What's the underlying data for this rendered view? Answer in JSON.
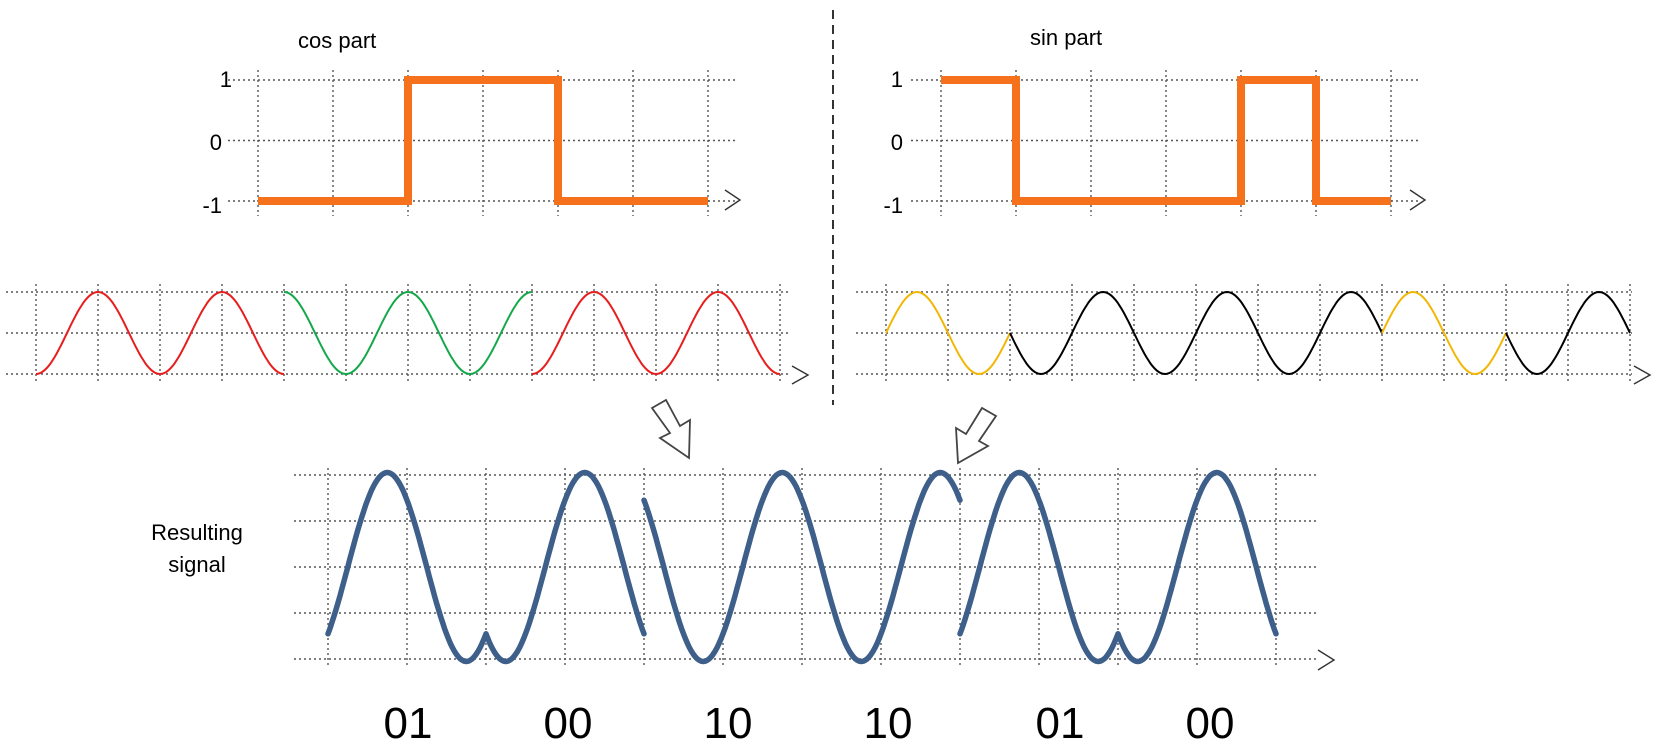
{
  "cos_chart": {
    "title": "cos part",
    "y_ticks": [
      "1",
      "0",
      "-1"
    ],
    "levels": [
      -1,
      -1,
      1,
      1,
      -1,
      -1
    ],
    "color": "#F5711C"
  },
  "sin_chart": {
    "title": "sin part",
    "y_ticks": [
      "1",
      "0",
      "-1"
    ],
    "levels": [
      1,
      -1,
      -1,
      -1,
      1,
      -1
    ],
    "color": "#F5711C"
  },
  "cos_wave": {
    "segment_colors": [
      "#E61E1E",
      "#E61E1E",
      "#14A84A",
      "#14A84A",
      "#E61E1E",
      "#E61E1E"
    ]
  },
  "sin_wave": {
    "segment_colors": [
      "#F2B705",
      "#000000",
      "#000000",
      "#000000",
      "#F2B705",
      "#000000"
    ]
  },
  "result": {
    "label_line1": "Resulting",
    "label_line2": "signal",
    "color": "#3E5F8A",
    "symbols": [
      "01",
      "00",
      "10",
      "10",
      "01",
      "00"
    ]
  },
  "chart_data": [
    {
      "type": "line",
      "title": "cos part",
      "x": [
        0,
        1,
        2,
        3,
        4,
        5
      ],
      "values": [
        -1,
        -1,
        1,
        1,
        -1,
        -1
      ],
      "ylim": [
        -1,
        1
      ]
    },
    {
      "type": "line",
      "title": "sin part",
      "x": [
        0,
        1,
        2,
        3,
        4,
        5
      ],
      "values": [
        1,
        -1,
        -1,
        -1,
        1,
        -1
      ],
      "ylim": [
        -1,
        1
      ]
    }
  ]
}
